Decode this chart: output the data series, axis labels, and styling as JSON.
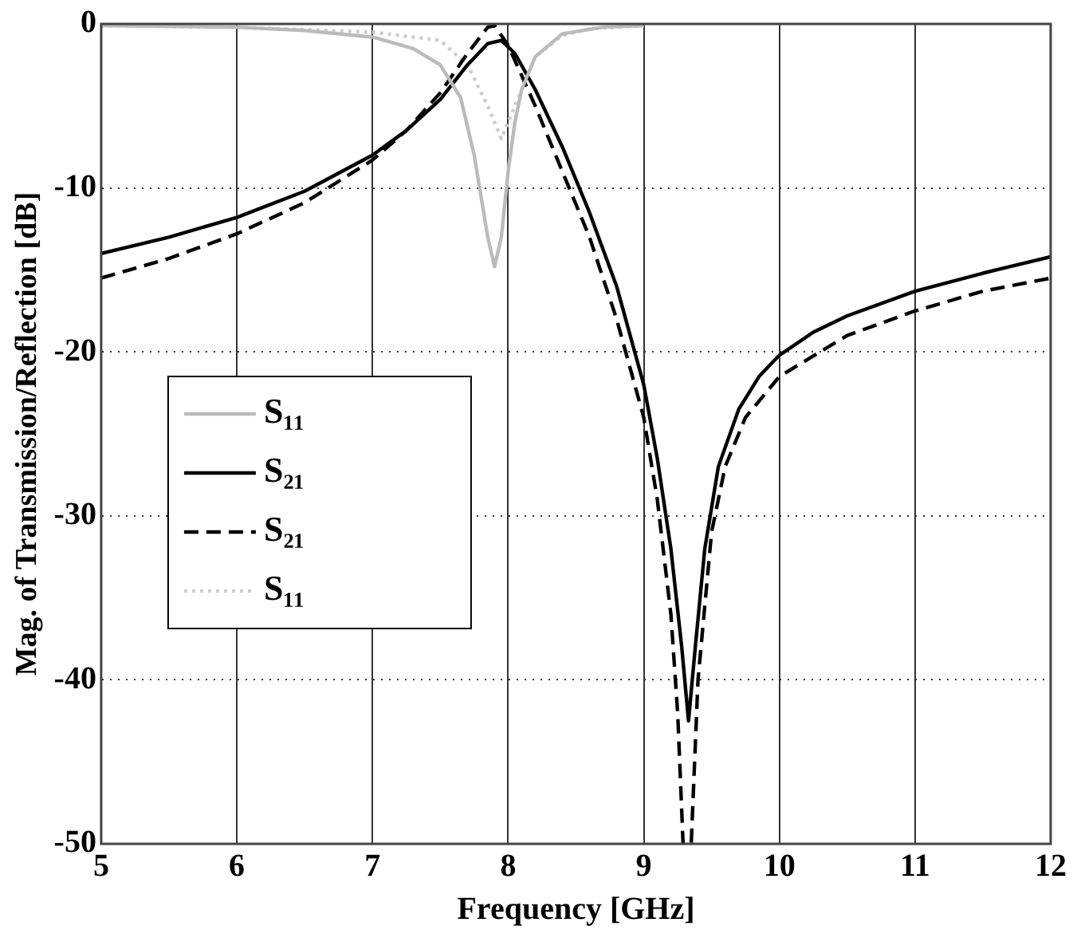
{
  "chart_data": {
    "type": "line",
    "xlabel": "Frequency [GHz]",
    "ylabel": "Mag. of Transmission/Reflection [dB]",
    "xlim": [
      5,
      12
    ],
    "xticks": [
      5,
      6,
      7,
      8,
      9,
      10,
      11,
      12
    ],
    "ylim": [
      -50,
      0
    ],
    "yticks": [
      -50,
      -40,
      -30,
      -20,
      -10,
      0
    ],
    "grid": true,
    "legend": "left",
    "marker": "none",
    "series": [
      {
        "name": "S₁₁",
        "color": "#bbbbbb",
        "line_style": "solid",
        "x": [
          5,
          6,
          6.5,
          7,
          7.3,
          7.5,
          7.65,
          7.75,
          7.85,
          7.9,
          7.95,
          8.0,
          8.05,
          8.1,
          8.2,
          8.4,
          8.7,
          9
        ],
        "values": [
          -0.1,
          -0.2,
          -0.4,
          -0.8,
          -1.5,
          -2.5,
          -4.5,
          -8,
          -13,
          -14.8,
          -13,
          -9,
          -6,
          -4,
          -2,
          -0.6,
          -0.2,
          -0.1
        ]
      },
      {
        "name": "S₂₁",
        "color": "#000000",
        "line_style": "solid",
        "x": [
          5,
          5.5,
          6,
          6.5,
          7,
          7.25,
          7.5,
          7.7,
          7.85,
          7.95,
          8.05,
          8.2,
          8.4,
          8.6,
          8.8,
          9.0,
          9.1,
          9.2,
          9.28,
          9.33,
          9.38,
          9.45,
          9.55,
          9.7,
          9.85,
          10,
          10.25,
          10.5,
          11,
          11.5,
          12
        ],
        "values": [
          -14,
          -13,
          -11.8,
          -10.2,
          -8,
          -6.5,
          -4.6,
          -2.5,
          -1.2,
          -1,
          -1.8,
          -4,
          -7.5,
          -11.5,
          -16,
          -22,
          -26.5,
          -32,
          -38,
          -42.5,
          -38,
          -32,
          -27,
          -23.5,
          -21.5,
          -20.2,
          -18.8,
          -17.8,
          -16.3,
          -15.2,
          -14.2
        ]
      },
      {
        "name": "S₂₁",
        "color": "#000000",
        "line_style": "dashed",
        "x": [
          5,
          5.5,
          6,
          6.5,
          7,
          7.25,
          7.5,
          7.7,
          7.85,
          7.9,
          8.0,
          8.2,
          8.4,
          8.6,
          8.8,
          9.0,
          9.1,
          9.2,
          9.25,
          9.29,
          9.35,
          9.4,
          9.5,
          9.6,
          9.75,
          10,
          10.5,
          11,
          11.5,
          12
        ],
        "values": [
          -15.5,
          -14.3,
          -12.8,
          -10.9,
          -8.3,
          -6.5,
          -4.2,
          -1.8,
          -0.2,
          -0.1,
          -1.3,
          -5,
          -9,
          -13,
          -18,
          -24,
          -29,
          -36,
          -42,
          -50,
          -50,
          -40,
          -31,
          -27,
          -24,
          -21.5,
          -19,
          -17.5,
          -16.3,
          -15.5
        ]
      },
      {
        "name": "S₁₁",
        "color": "#cccccc",
        "line_style": "dotted",
        "x": [
          5,
          6,
          7,
          7.5,
          7.7,
          7.85,
          7.95,
          8.05,
          8.2,
          8.4,
          8.6,
          9
        ],
        "values": [
          -0.1,
          -0.2,
          -0.5,
          -1,
          -2.5,
          -5,
          -7,
          -5,
          -2,
          -0.7,
          -0.3,
          -0.1
        ]
      }
    ]
  }
}
